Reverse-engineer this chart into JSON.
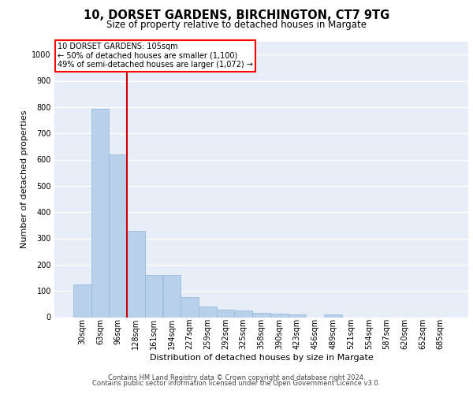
{
  "title_line1": "10, DORSET GARDENS, BIRCHINGTON, CT7 9TG",
  "title_line2": "Size of property relative to detached houses in Margate",
  "xlabel": "Distribution of detached houses by size in Margate",
  "ylabel": "Number of detached properties",
  "footer_line1": "Contains HM Land Registry data © Crown copyright and database right 2024.",
  "footer_line2": "Contains public sector information licensed under the Open Government Licence v3.0.",
  "categories": [
    "30sqm",
    "63sqm",
    "96sqm",
    "128sqm",
    "161sqm",
    "194sqm",
    "227sqm",
    "259sqm",
    "292sqm",
    "325sqm",
    "358sqm",
    "390sqm",
    "423sqm",
    "456sqm",
    "489sqm",
    "521sqm",
    "554sqm",
    "587sqm",
    "620sqm",
    "652sqm",
    "685sqm"
  ],
  "values": [
    125,
    795,
    620,
    330,
    160,
    160,
    78,
    40,
    28,
    25,
    18,
    13,
    10,
    0,
    10,
    0,
    0,
    0,
    0,
    0,
    0
  ],
  "bar_color": "#b8d0ea",
  "bar_edge_color": "#8fb4d8",
  "vline_x": 2.5,
  "vline_color": "#cc0000",
  "annotation_text_line1": "10 DORSET GARDENS: 105sqm",
  "annotation_text_line2": "← 50% of detached houses are smaller (1,100)",
  "annotation_text_line3": "49% of semi-detached houses are larger (1,072) →",
  "ylim": [
    0,
    1050
  ],
  "yticks": [
    0,
    100,
    200,
    300,
    400,
    500,
    600,
    700,
    800,
    900,
    1000
  ],
  "background_color": "#e8eef8",
  "grid_color": "#ffffff",
  "fig_bg": "#ffffff",
  "title1_fontsize": 10.5,
  "title2_fontsize": 8.5,
  "ylabel_fontsize": 8.0,
  "xlabel_fontsize": 8.0,
  "footer_fontsize": 6.0,
  "tick_fontsize": 7.0,
  "annot_fontsize": 7.0
}
